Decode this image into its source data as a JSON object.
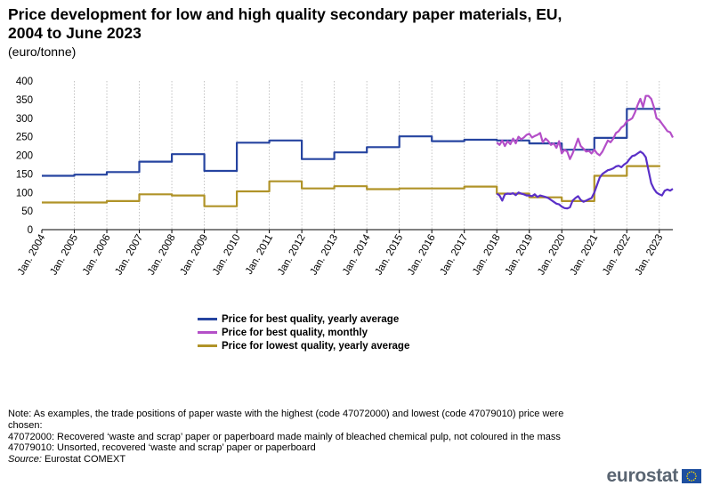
{
  "title": "Price development for low and high quality secondary paper materials, EU, 2004 to June 2023",
  "subtitle": "(euro/tonne)",
  "legend": [
    {
      "label": "Price for best quality, yearly average",
      "color": "#2644a0"
    },
    {
      "label": "Price for best quality, monthly",
      "color": "#b44fc8"
    },
    {
      "label": "Price for lowest quality, yearly average",
      "color": "#b09328"
    }
  ],
  "notes": [
    "Note: As examples, the trade positions of paper waste with the highest (code 47072000) and lowest (code 47079010) price were chosen:",
    "47072000: Recovered ‘waste and scrap’ paper or paperboard made mainly of bleached chemical pulp, not coloured in the mass",
    "47079010: Unsorted, recovered ‘waste and scrap’ paper or paperboard"
  ],
  "source": {
    "label": "Source:",
    "text": " Eurostat COMEXT"
  },
  "logo": {
    "text": "eurostat",
    "flag_color": "#1e4fa0",
    "star_color": "#ffdd00"
  },
  "chart_data": {
    "type": "line",
    "title": "Price development for low and high quality secondary paper materials, EU, 2004 to June 2023",
    "ylabel": "(euro/tonne)",
    "ylim": [
      0,
      400
    ],
    "yticks": [
      0,
      50,
      100,
      150,
      200,
      250,
      300,
      350,
      400
    ],
    "x_range": [
      "2004-01",
      "2023-06"
    ],
    "xticks": [
      "Jan. 2004",
      "Jan. 2005",
      "Jan. 2006",
      "Jan. 2007",
      "Jan. 2008",
      "Jan. 2009",
      "Jan. 2010",
      "Jan. 2011",
      "Jan. 2012",
      "Jan. 2013",
      "Jan. 2014",
      "Jan. 2015",
      "Jan. 2016",
      "Jan. 2017",
      "Jan. 2018",
      "Jan. 2019",
      "Jan. 2020",
      "Jan. 2021",
      "Jan. 2022",
      "Jan. 2023"
    ],
    "grid": "vertical dotted",
    "legend_position": "bottom",
    "series": [
      {
        "name": "Price for best quality, yearly average",
        "color": "#2644a0",
        "style": "step",
        "years": [
          2004,
          2005,
          2006,
          2007,
          2008,
          2009,
          2010,
          2011,
          2012,
          2013,
          2014,
          2015,
          2016,
          2017,
          2018,
          2019,
          2020,
          2021,
          2022,
          2023
        ],
        "values": [
          145,
          148,
          155,
          183,
          203,
          158,
          234,
          240,
          190,
          208,
          222,
          251,
          238,
          242,
          240,
          232,
          215,
          247,
          325,
          325
        ]
      },
      {
        "name": "Price for lowest quality, yearly average",
        "color": "#b09328",
        "style": "step",
        "years": [
          2004,
          2005,
          2006,
          2007,
          2008,
          2009,
          2010,
          2011,
          2012,
          2013,
          2014,
          2015,
          2016,
          2017,
          2018,
          2019,
          2020,
          2021,
          2022,
          2023
        ],
        "values": [
          73,
          73,
          77,
          95,
          92,
          63,
          103,
          130,
          111,
          117,
          109,
          111,
          111,
          116,
          97,
          87,
          77,
          145,
          171,
          171
        ]
      },
      {
        "name": "Price for best quality, monthly",
        "color": "#b44fc8",
        "style": "monthly",
        "start": "2018-01",
        "values": [
          235,
          228,
          240,
          225,
          238,
          230,
          245,
          232,
          250,
          243,
          248,
          255,
          258,
          248,
          252,
          255,
          260,
          235,
          245,
          238,
          228,
          232,
          220,
          238,
          205,
          215,
          210,
          190,
          205,
          225,
          245,
          225,
          218,
          210,
          212,
          205,
          215,
          205,
          200,
          210,
          225,
          240,
          235,
          245,
          260,
          265,
          275,
          280,
          292,
          295,
          300,
          315,
          335,
          352,
          330,
          360,
          360,
          352,
          330,
          300,
          295,
          285,
          275,
          265,
          262,
          248
        ]
      },
      {
        "name": "",
        "color": "#5a2fc8",
        "style": "monthly",
        "start": "2018-01",
        "values": [
          97,
          92,
          78,
          95,
          97,
          96,
          98,
          93,
          100,
          97,
          95,
          92,
          92,
          90,
          95,
          88,
          92,
          90,
          88,
          85,
          80,
          75,
          70,
          68,
          62,
          58,
          57,
          60,
          78,
          85,
          90,
          80,
          75,
          78,
          82,
          85,
          100,
          120,
          140,
          150,
          155,
          160,
          162,
          165,
          170,
          172,
          168,
          175,
          180,
          190,
          198,
          200,
          205,
          210,
          205,
          195,
          160,
          125,
          110,
          100,
          95,
          92,
          105,
          108,
          105,
          110
        ]
      }
    ]
  }
}
